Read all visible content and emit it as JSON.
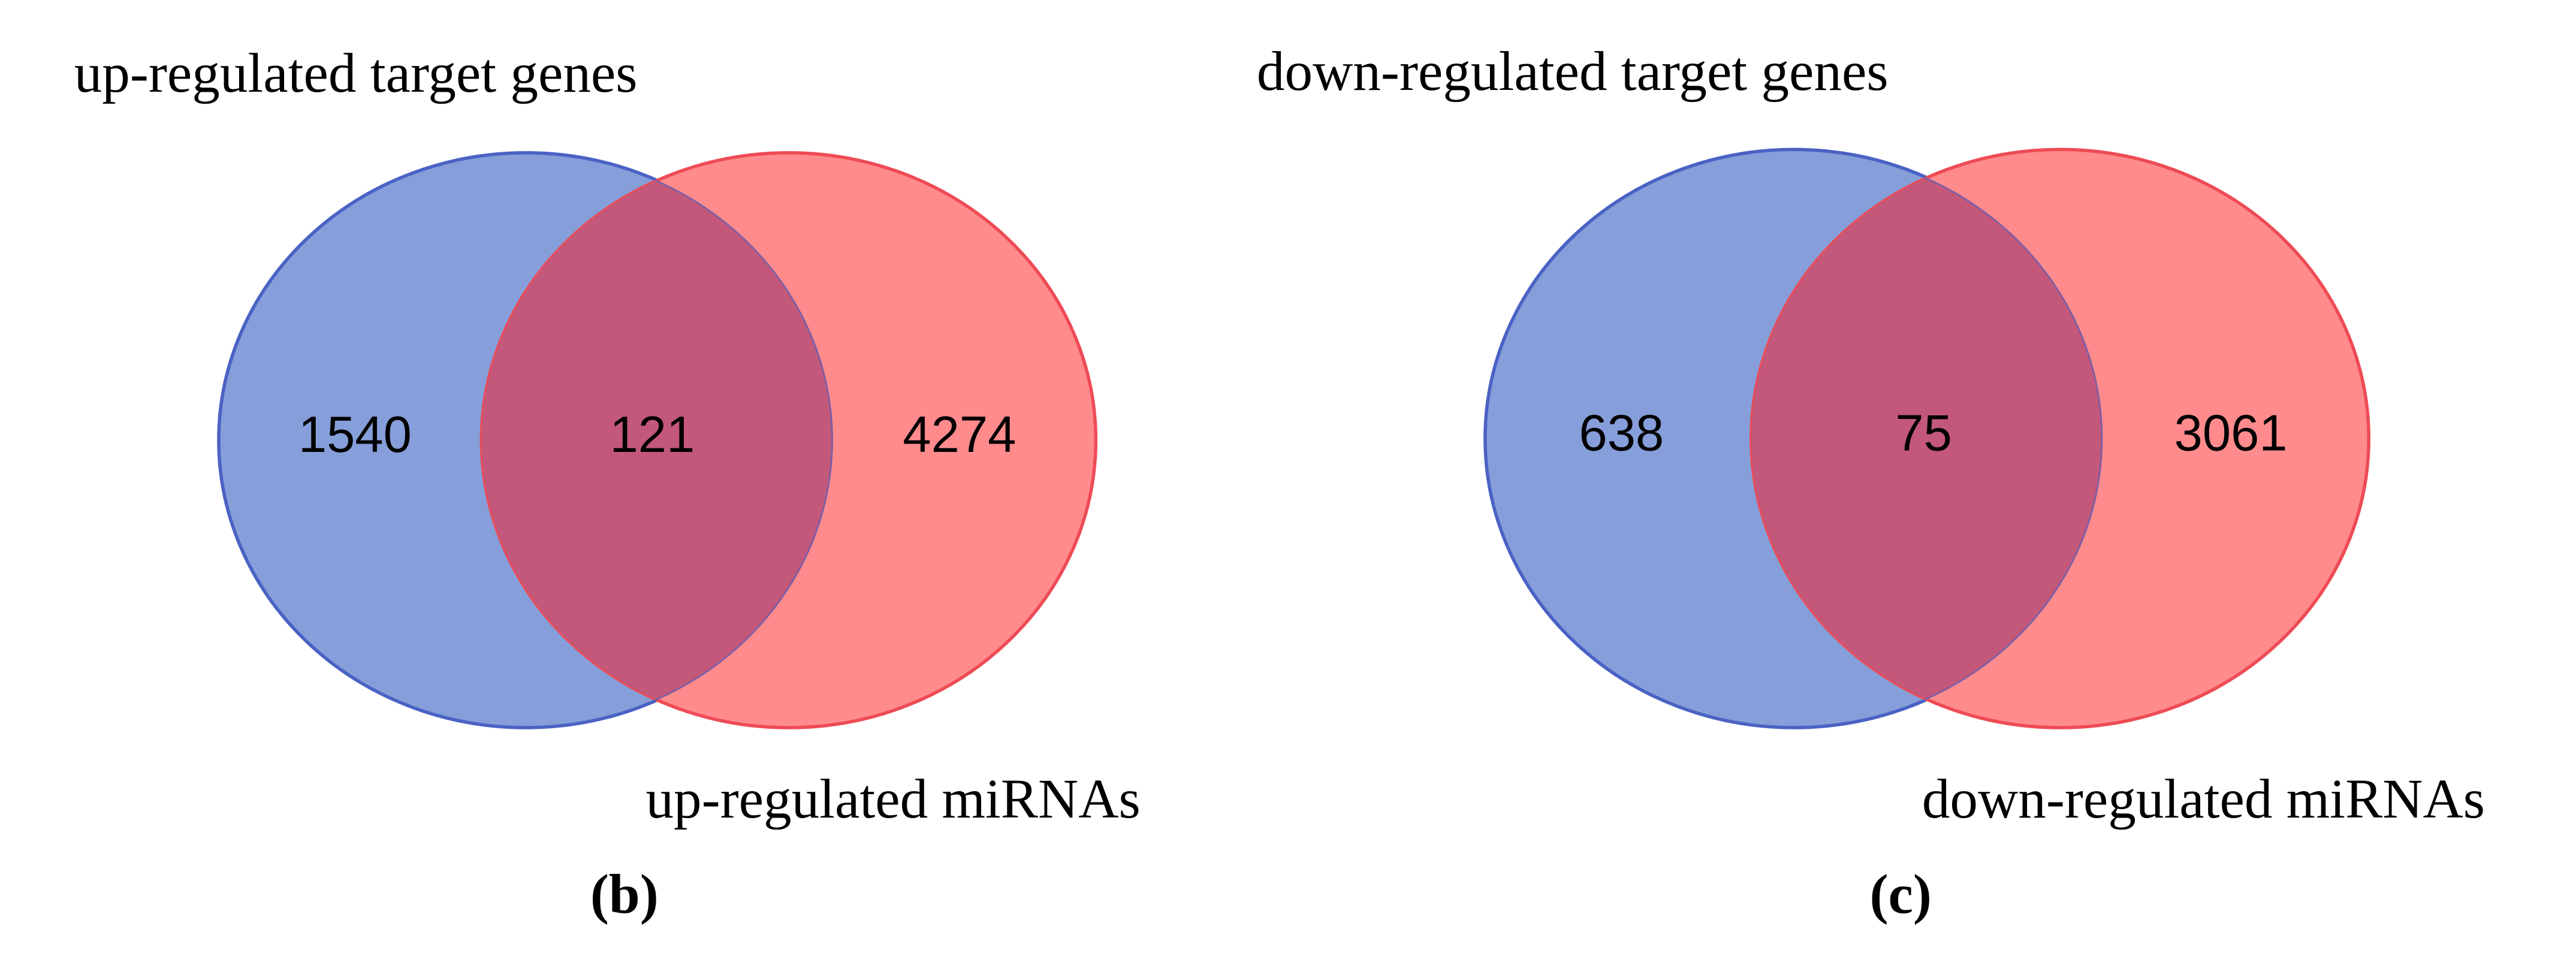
{
  "chart_data": [
    {
      "type": "venn",
      "panel": "(b)",
      "sets": [
        {
          "name": "up-regulated target genes",
          "color": "#869ed9",
          "stroke": "#4a62c4"
        },
        {
          "name": "up-regulated miRNAs",
          "color": "#ff8b8d",
          "stroke": "#ee4b55"
        }
      ],
      "overlap_color": "#c3587a",
      "values": [
        1540,
        121,
        4274
      ]
    },
    {
      "type": "venn",
      "panel": "(c)",
      "sets": [
        {
          "name": "down-regulated target genes",
          "color": "#869ed9",
          "stroke": "#4a62c4"
        },
        {
          "name": "down-regulated miRNAs",
          "color": "#ff8b8d",
          "stroke": "#ee4b55"
        }
      ],
      "overlap_color": "#c3587a",
      "values": [
        638,
        75,
        3061
      ]
    }
  ]
}
